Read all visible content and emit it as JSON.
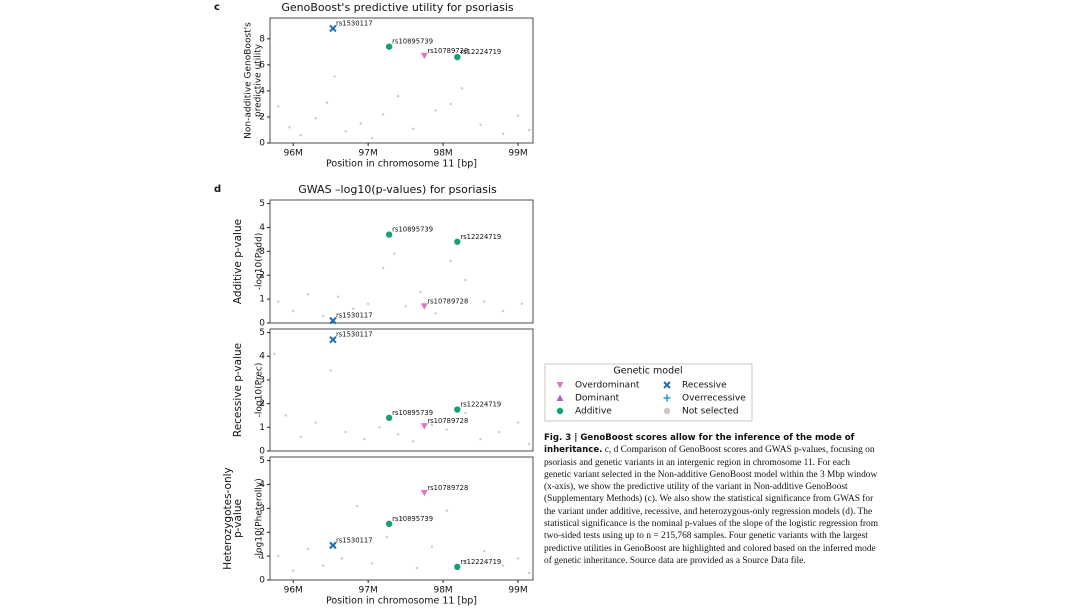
{
  "chart_data": [
    {
      "type": "scatter",
      "panel": "c",
      "title": "GenoBoost's predictive utility for psoriasis",
      "ylabel": [
        "Non-additive GenoBoost's",
        "predictive utility"
      ],
      "xlabel": "Position in chromosome 11 [bp]",
      "xlim": [
        95.69,
        99.2
      ],
      "xticks": [
        {
          "value": 96,
          "label": "96M"
        },
        {
          "value": 97,
          "label": "97M"
        },
        {
          "value": 98,
          "label": "98M"
        },
        {
          "value": 99,
          "label": "99M"
        }
      ],
      "ylim": [
        0,
        9.6
      ],
      "yticks": [
        0,
        2,
        4,
        6,
        8
      ],
      "legend_title": "Genetic model",
      "series": [
        {
          "name": "Overdominant",
          "color": "#e377c2",
          "marker": "triangle-down",
          "labels": [
            "rs10789728"
          ],
          "x": [
            97.75
          ],
          "values": [
            6.7
          ]
        },
        {
          "name": "Dominant",
          "color": "#b25fc9",
          "marker": "triangle-up",
          "labels": [],
          "x": [],
          "values": []
        },
        {
          "name": "Additive",
          "color": "#1a9e77",
          "marker": "circle",
          "labels": [
            "rs10895739",
            "rs12224719"
          ],
          "x": [
            97.28,
            98.19
          ],
          "values": [
            7.4,
            6.6
          ]
        },
        {
          "name": "Recessive",
          "color": "#1f6fb4",
          "marker": "x",
          "labels": [
            "rs1530117"
          ],
          "x": [
            96.53
          ],
          "values": [
            8.8
          ]
        },
        {
          "name": "Overrecessive",
          "color": "#1f9fd4",
          "marker": "plus",
          "labels": [],
          "x": [],
          "values": []
        },
        {
          "name": "Not selected",
          "color": "#c8c8c8",
          "marker": "dot",
          "labels": [],
          "x": [
            95.8,
            95.95,
            96.1,
            96.3,
            96.45,
            96.55,
            96.7,
            96.9,
            97.05,
            97.2,
            97.4,
            97.6,
            97.9,
            98.1,
            98.25,
            98.5,
            98.8,
            99.0,
            99.15
          ],
          "values": [
            2.8,
            1.2,
            0.6,
            1.9,
            3.1,
            5.1,
            0.9,
            1.5,
            0.4,
            2.2,
            3.6,
            1.1,
            2.5,
            3.0,
            4.2,
            1.4,
            0.7,
            2.1,
            1.0
          ]
        }
      ]
    },
    {
      "type": "scatter",
      "title": "GWAS –log10(p-values) for psoriasis",
      "panel": "d",
      "rowlabel": [
        "Additive p-value"
      ],
      "ylabel": [
        "-log10(Padd)"
      ],
      "xlim": [
        95.69,
        99.2
      ],
      "ylim": [
        0,
        5.15
      ],
      "yticks": [
        0,
        1,
        2,
        3,
        4,
        5
      ],
      "series": [
        {
          "name": "Overdominant",
          "color": "#e377c2",
          "marker": "triangle-down",
          "labels": [
            "rs10789728"
          ],
          "x": [
            97.75
          ],
          "values": [
            0.7
          ]
        },
        {
          "name": "Additive",
          "color": "#1a9e77",
          "marker": "circle",
          "labels": [
            "rs10895739",
            "rs12224719"
          ],
          "x": [
            97.28,
            98.19
          ],
          "values": [
            3.7,
            3.4
          ]
        },
        {
          "name": "Recessive",
          "color": "#1f6fb4",
          "marker": "x",
          "labels": [
            "rs1530117"
          ],
          "x": [
            96.53
          ],
          "values": [
            0.1
          ]
        },
        {
          "name": "Not selected",
          "color": "#c8c8c8",
          "marker": "dot",
          "labels": [],
          "x": [
            95.8,
            96.0,
            96.2,
            96.4,
            96.6,
            96.8,
            97.0,
            97.2,
            97.35,
            97.5,
            97.7,
            97.9,
            98.1,
            98.3,
            98.55,
            98.8,
            99.05
          ],
          "values": [
            0.9,
            0.5,
            1.2,
            0.3,
            1.1,
            0.6,
            0.8,
            2.3,
            2.9,
            0.7,
            1.3,
            0.4,
            2.6,
            1.8,
            0.9,
            0.5,
            0.8
          ]
        }
      ]
    },
    {
      "type": "scatter",
      "rowlabel": [
        "Recessive p-value"
      ],
      "ylabel": [
        "-log10(Prec)"
      ],
      "xlim": [
        95.69,
        99.2
      ],
      "ylim": [
        0,
        5.15
      ],
      "yticks": [
        0,
        1,
        2,
        3,
        4,
        5
      ],
      "series": [
        {
          "name": "Overdominant",
          "color": "#e377c2",
          "marker": "triangle-down",
          "labels": [
            "rs10789728"
          ],
          "x": [
            97.75
          ],
          "values": [
            1.05
          ]
        },
        {
          "name": "Additive",
          "color": "#1a9e77",
          "marker": "circle",
          "labels": [
            "rs10895739",
            "rs12224719"
          ],
          "x": [
            97.28,
            98.19
          ],
          "values": [
            1.4,
            1.75
          ]
        },
        {
          "name": "Recessive",
          "color": "#1f6fb4",
          "marker": "x",
          "labels": [
            "rs1530117"
          ],
          "x": [
            96.53
          ],
          "values": [
            4.7
          ]
        },
        {
          "name": "Not selected",
          "color": "#c8c8c8",
          "marker": "dot",
          "labels": [],
          "x": [
            95.75,
            95.9,
            96.1,
            96.3,
            96.5,
            96.7,
            96.95,
            97.15,
            97.4,
            97.6,
            97.85,
            98.05,
            98.3,
            98.5,
            98.75,
            99.0,
            99.15
          ],
          "values": [
            4.1,
            1.5,
            0.6,
            1.2,
            3.4,
            0.8,
            0.5,
            1.0,
            0.7,
            0.4,
            1.1,
            0.9,
            1.6,
            0.5,
            0.8,
            1.2,
            0.3
          ]
        }
      ]
    },
    {
      "type": "scatter",
      "rowlabel": [
        "Heterozygotes-only",
        "p-value"
      ],
      "ylabel": [
        "-log10(Pheterolly)"
      ],
      "xlabel": "Position in chromosome 11 [bp]",
      "xlim": [
        95.69,
        99.2
      ],
      "xticks": [
        {
          "value": 96,
          "label": "96M"
        },
        {
          "value": 97,
          "label": "97M"
        },
        {
          "value": 98,
          "label": "98M"
        },
        {
          "value": 99,
          "label": "99M"
        }
      ],
      "ylim": [
        0,
        5.15
      ],
      "yticks": [
        0,
        1,
        2,
        3,
        4,
        5
      ],
      "series": [
        {
          "name": "Overdominant",
          "color": "#e377c2",
          "marker": "triangle-down",
          "labels": [
            "rs10789728"
          ],
          "x": [
            97.75
          ],
          "values": [
            3.65
          ]
        },
        {
          "name": "Additive",
          "color": "#1a9e77",
          "marker": "circle",
          "labels": [
            "rs10895739",
            "rs12224719"
          ],
          "x": [
            97.28,
            98.19
          ],
          "values": [
            2.35,
            0.55
          ]
        },
        {
          "name": "Recessive",
          "color": "#1f6fb4",
          "marker": "x",
          "labels": [
            "rs1530117"
          ],
          "x": [
            96.53
          ],
          "values": [
            1.45
          ]
        },
        {
          "name": "Not selected",
          "color": "#c8c8c8",
          "marker": "dot",
          "labels": [],
          "x": [
            95.8,
            96.0,
            96.2,
            96.4,
            96.65,
            96.85,
            97.05,
            97.25,
            97.45,
            97.65,
            97.85,
            98.05,
            98.3,
            98.55,
            98.8,
            99.0,
            99.15
          ],
          "values": [
            1.0,
            0.4,
            1.3,
            0.6,
            0.9,
            3.1,
            0.7,
            1.8,
            2.6,
            0.5,
            1.4,
            2.9,
            0.8,
            1.2,
            0.6,
            0.9,
            0.3
          ]
        }
      ]
    }
  ],
  "caption": {
    "title": "Fig. 3 | GenoBoost scores allow for the inference of the mode of inheritance.",
    "text": "c, d Comparison of GenoBoost scores and GWAS p-values, focusing on psoriasis and genetic variants in an intergenic region in chromosome 11. For each genetic variant selected in the Non-additive GenoBoost model within the 3 Mbp window (x-axis), we show the predictive utility of the variant in Non-additive GenoBoost (Supplementary Methods) (c). We also show the statistical significance from GWAS for the variant under additive, recessive, and heterozygous-only regression models (d). The statistical significance is the nominal p-values of the slope of the logistic regression from two-sided tests using up to n = 215,768 samples. Four genetic variants with the largest predictive utilities in GenoBoost are highlighted and colored based on the inferred mode of genetic inheritance. Source data are provided as a Source Data file."
  }
}
